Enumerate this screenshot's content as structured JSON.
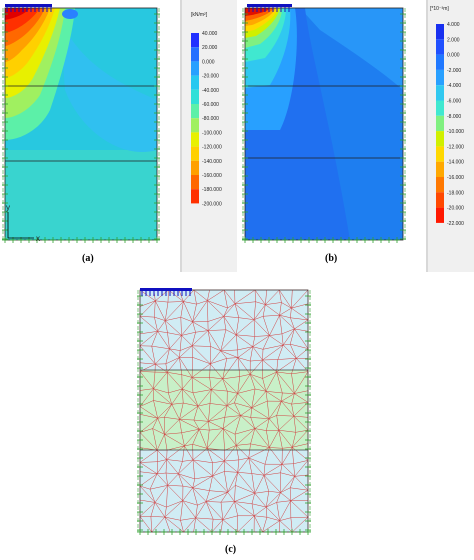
{
  "panels": {
    "a": {
      "label": "(a)",
      "unit": "[kN/m²]",
      "legend_values": [
        "40.000",
        "20.000",
        "0.000",
        "-20.000",
        "-40.000",
        "-60.000",
        "-80.000",
        "-100.000",
        "-120.000",
        "-140.000",
        "-160.000",
        "-180.000",
        "-200.000"
      ],
      "legend_colors": [
        "#2030ff",
        "#2470ff",
        "#28a0ff",
        "#28c8f0",
        "#30e0d8",
        "#5cf0a8",
        "#a0f060",
        "#e8f000",
        "#ffd000",
        "#ffa000",
        "#ff6800",
        "#ff3000",
        "#e00000"
      ],
      "axis_y": "y",
      "axis_x": "x"
    },
    "b": {
      "label": "(b)",
      "unit": "[*10⁻³m]",
      "legend_values": [
        "4.000",
        "2.000",
        "0.000",
        "-2.000",
        "-4.000",
        "-6.000",
        "-8.000",
        "-10.000",
        "-12.000",
        "-14.000",
        "-16.000",
        "-18.000",
        "-20.000",
        "-22.000"
      ],
      "legend_colors": [
        "#1830f0",
        "#2050ff",
        "#2078ff",
        "#28a0ff",
        "#30c8f0",
        "#40e8d0",
        "#80f080",
        "#d0f000",
        "#ffd800",
        "#ffa800",
        "#ff7800",
        "#ff4800",
        "#ff1800",
        "#d00000"
      ]
    },
    "c": {
      "label": "(c)"
    }
  },
  "colors": {
    "soil_bg_a": "#28c8e0",
    "soil_bg_b": "#1e7ef0",
    "mesh_line": "#d04040",
    "mesh_layer1": "#d0ecf4",
    "mesh_layer2": "#c8f0c8",
    "mesh_layer3": "#d0ecf4",
    "load": "#1010c0",
    "support": "#30a030"
  }
}
